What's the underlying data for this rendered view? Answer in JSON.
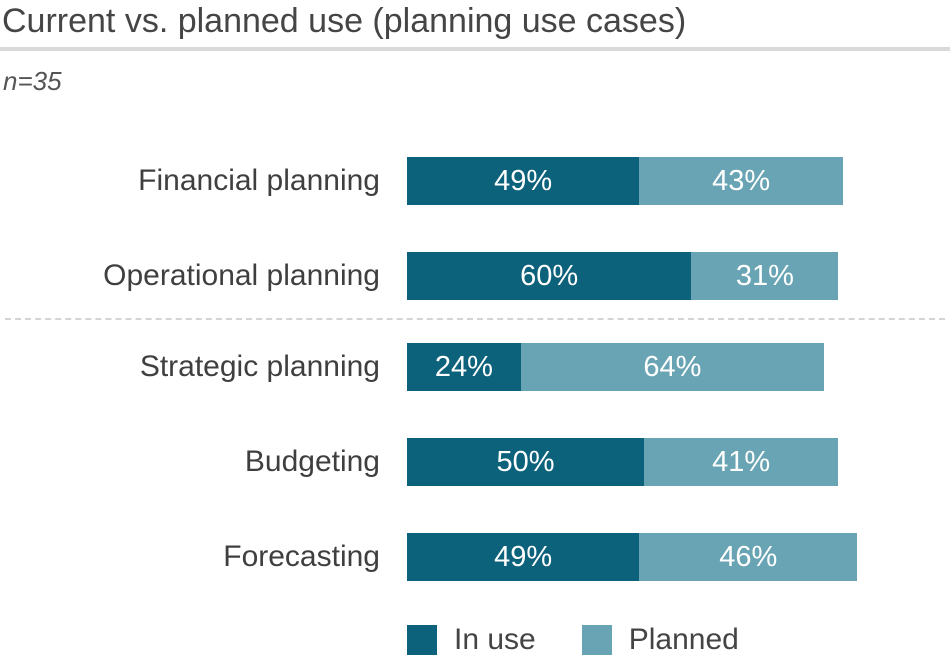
{
  "header": {
    "title": "Current vs. planned use (planning use cases)",
    "sample_size": "n=35"
  },
  "colors": {
    "in_use": "#0C617B",
    "planned": "#68A4B3",
    "divider": "#d4d4d4",
    "title_rule": "#d9d9d9"
  },
  "legend": {
    "in_use_label": "In use",
    "planned_label": "Planned"
  },
  "chart_data": {
    "type": "bar",
    "orientation": "horizontal",
    "stacked": true,
    "title": "Current vs. planned use (planning use cases)",
    "subtitle": "n=35",
    "unit": "%",
    "xlim": [
      0,
      100
    ],
    "grid": false,
    "legend_position": "bottom",
    "divider_after_category": "Operational planning",
    "categories": [
      "Financial planning",
      "Operational planning",
      "Strategic planning",
      "Budgeting",
      "Forecasting"
    ],
    "series": [
      {
        "name": "In use",
        "color": "#0C617B",
        "values": [
          49,
          60,
          24,
          50,
          49
        ]
      },
      {
        "name": "Planned",
        "color": "#68A4B3",
        "values": [
          43,
          31,
          64,
          41,
          46
        ]
      }
    ],
    "rows": [
      {
        "label": "Financial planning",
        "in_use": 49,
        "planned": 43,
        "in_use_label": "49%",
        "planned_label": "43%"
      },
      {
        "label": "Operational planning",
        "in_use": 60,
        "planned": 31,
        "in_use_label": "60%",
        "planned_label": "31%"
      },
      {
        "label": "Strategic planning",
        "in_use": 24,
        "planned": 64,
        "in_use_label": "24%",
        "planned_label": "64%"
      },
      {
        "label": "Budgeting",
        "in_use": 50,
        "planned": 41,
        "in_use_label": "50%",
        "planned_label": "41%"
      },
      {
        "label": "Forecasting",
        "in_use": 49,
        "planned": 46,
        "in_use_label": "49%",
        "planned_label": "46%"
      }
    ]
  }
}
